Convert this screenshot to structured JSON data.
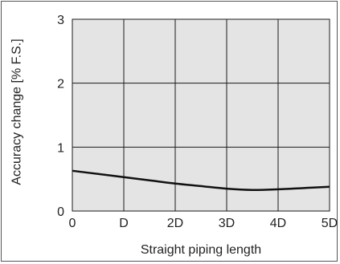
{
  "chart_data": {
    "type": "line",
    "title": "",
    "xlabel": "Straight piping length",
    "ylabel": "Accuracy change [% F.S.]",
    "x_categories": [
      "0",
      "D",
      "2D",
      "3D",
      "4D",
      "5D"
    ],
    "xlim": [
      0,
      5
    ],
    "ylim": [
      0,
      3
    ],
    "y_ticks": [
      "0",
      "1",
      "2",
      "3"
    ],
    "grid": true,
    "legend": "none",
    "series": [
      {
        "x": [
          0,
          0.5,
          1,
          1.5,
          2,
          2.5,
          3,
          3.5,
          4,
          4.5,
          5
        ],
        "y": [
          0.63,
          0.58,
          0.53,
          0.48,
          0.43,
          0.39,
          0.35,
          0.33,
          0.34,
          0.36,
          0.38
        ]
      }
    ],
    "colors": {
      "plot_background": "#e4e4e4",
      "grid": "#1a1a1a",
      "line": "#111111"
    }
  }
}
